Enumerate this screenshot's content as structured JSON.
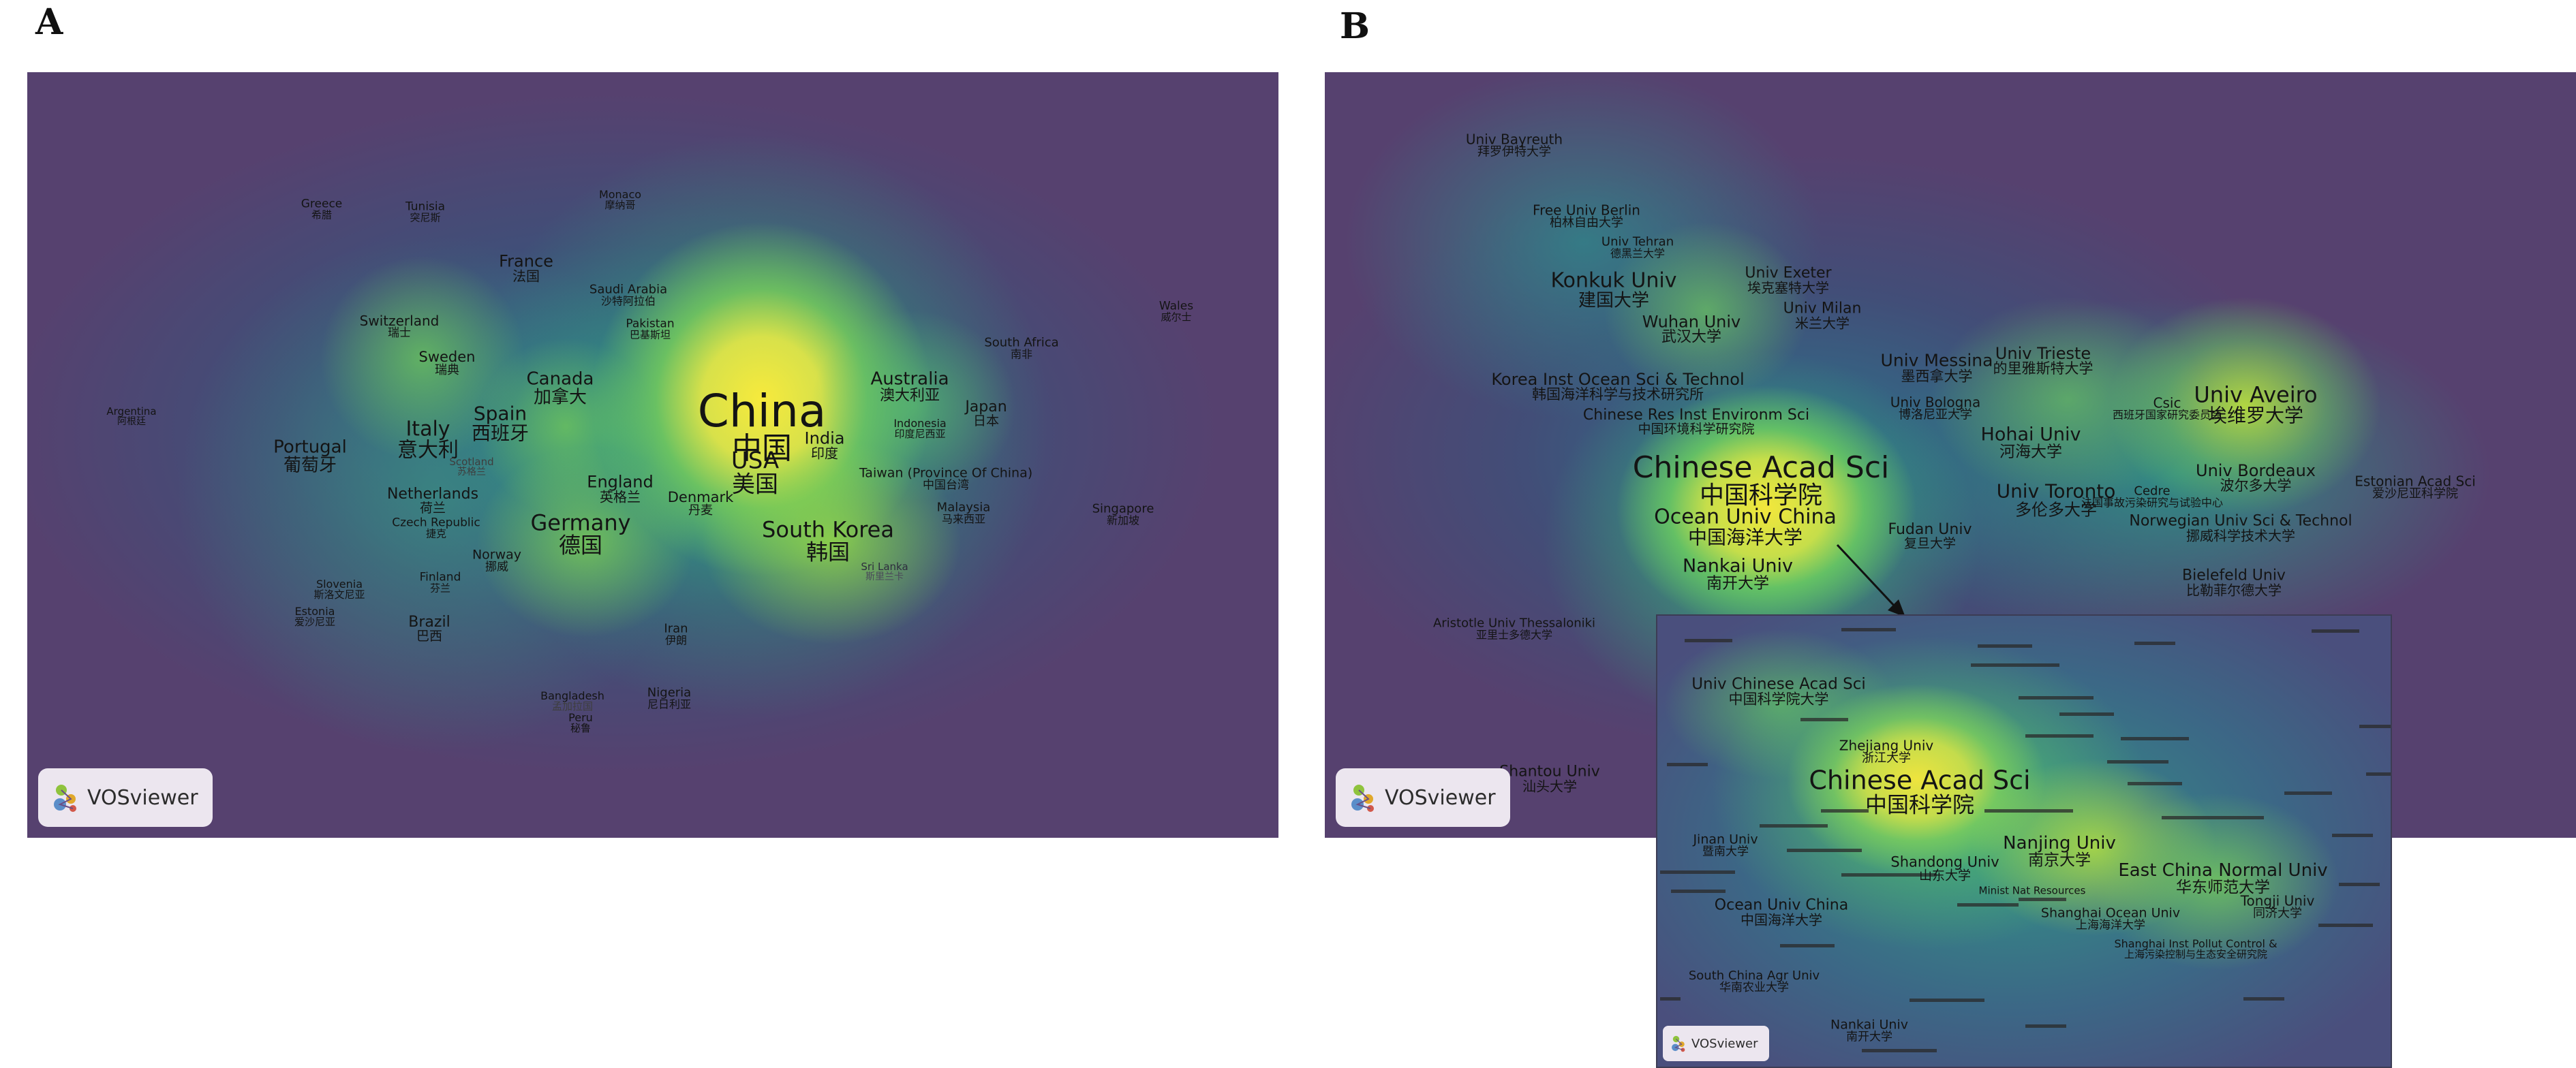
{
  "panels": [
    {
      "letter": "A"
    },
    {
      "letter": "B"
    }
  ],
  "logo_text": "VOSviewer",
  "mapA": {
    "labels": [
      {
        "en": "China",
        "zh": "中国"
      },
      {
        "en": "USA",
        "zh": "美国"
      },
      {
        "en": "India",
        "zh": "印度"
      },
      {
        "en": "South Korea",
        "zh": "韩国"
      },
      {
        "en": "Germany",
        "zh": "德国"
      },
      {
        "en": "England",
        "zh": "英格兰"
      },
      {
        "en": "Italy",
        "zh": "意大利"
      },
      {
        "en": "Spain",
        "zh": "西班牙"
      },
      {
        "en": "Canada",
        "zh": "加拿大"
      },
      {
        "en": "France",
        "zh": "法国"
      },
      {
        "en": "Portugal",
        "zh": "葡萄牙"
      },
      {
        "en": "Australia",
        "zh": "澳大利亚"
      },
      {
        "en": "Japan",
        "zh": "日本"
      },
      {
        "en": "Netherlands",
        "zh": "荷兰"
      },
      {
        "en": "Sweden",
        "zh": "瑞典"
      },
      {
        "en": "Switzerland",
        "zh": "瑞士"
      },
      {
        "en": "Denmark",
        "zh": "丹麦"
      },
      {
        "en": "Brazil",
        "zh": "巴西"
      },
      {
        "en": "Norway",
        "zh": "挪威"
      },
      {
        "en": "Finland",
        "zh": "芬兰"
      },
      {
        "en": "Czech Republic",
        "zh": "捷克"
      },
      {
        "en": "Scotland",
        "zh": "苏格兰"
      },
      {
        "en": "Indonesia",
        "zh": "印度尼西亚"
      },
      {
        "en": "Malaysia",
        "zh": "马来西亚"
      },
      {
        "en": "Taiwan (Province Of China)",
        "zh": "中国台湾"
      },
      {
        "en": "South Africa",
        "zh": "南非"
      },
      {
        "en": "Singapore",
        "zh": "新加坡"
      },
      {
        "en": "Wales",
        "zh": "威尔士"
      },
      {
        "en": "Argentina",
        "zh": "阿根廷"
      },
      {
        "en": "Greece",
        "zh": "希腊"
      },
      {
        "en": "Tunisia",
        "zh": "突尼斯"
      },
      {
        "en": "Monaco",
        "zh": "摩纳哥"
      },
      {
        "en": "Saudi Arabia",
        "zh": "沙特阿拉伯"
      },
      {
        "en": "Pakistan",
        "zh": "巴基斯坦"
      },
      {
        "en": "Slovenia",
        "zh": "斯洛文尼亚"
      },
      {
        "en": "Estonia",
        "zh": "爱沙尼亚"
      },
      {
        "en": "Iran",
        "zh": "伊朗"
      },
      {
        "en": "Bangladesh",
        "zh": "孟加拉国"
      },
      {
        "en": "Peru",
        "zh": "秘鲁"
      },
      {
        "en": "Nigeria",
        "zh": "尼日利亚"
      },
      {
        "en": "Sri Lanka",
        "zh": "斯里兰卡"
      }
    ]
  },
  "mapB": {
    "labels": [
      {
        "en": "Chinese Acad Sci",
        "zh": "中国科学院"
      },
      {
        "en": "Ocean Univ China",
        "zh": "中国海洋大学"
      },
      {
        "en": "Nankai Univ",
        "zh": "南开大学"
      },
      {
        "en": "Fudan Univ",
        "zh": "复旦大学"
      },
      {
        "en": "Univ Toronto",
        "zh": "多伦多大学"
      },
      {
        "en": "Univ Aveiro",
        "zh": "埃维罗大学"
      },
      {
        "en": "Univ Bordeaux",
        "zh": "波尔多大学"
      },
      {
        "en": "Estonian Acad Sci",
        "zh": "爱沙尼亚科学院"
      },
      {
        "en": "Norwegian Univ Sci & Technol",
        "zh": "挪威科学技术大学"
      },
      {
        "en": "Bielefeld Univ",
        "zh": "比勒菲尔德大学"
      },
      {
        "en": "Cedre",
        "zh": "法国事故污染研究与试验中心"
      },
      {
        "en": "Csic",
        "zh": "西班牙国家研究委员会"
      },
      {
        "en": "Hohai Univ",
        "zh": "河海大学"
      },
      {
        "en": "Univ Bologna",
        "zh": "博洛尼亚大学"
      },
      {
        "en": "Univ Messina",
        "zh": "墨西拿大学"
      },
      {
        "en": "Univ Trieste",
        "zh": "的里雅斯特大学"
      },
      {
        "en": "Korea Inst Ocean Sci & Technol",
        "zh": "韩国海洋科学与技术研究所"
      },
      {
        "en": "Chinese Res Inst Environm Sci",
        "zh": "中国环境科学研究院"
      },
      {
        "en": "Konkuk Univ",
        "zh": "建国大学"
      },
      {
        "en": "Wuhan Univ",
        "zh": "武汉大学"
      },
      {
        "en": "Univ Exeter",
        "zh": "埃克塞特大学"
      },
      {
        "en": "Univ Milan",
        "zh": "米兰大学"
      },
      {
        "en": "Free Univ Berlin",
        "zh": "柏林自由大学"
      },
      {
        "en": "Univ Tehran",
        "zh": "德黑兰大学"
      },
      {
        "en": "Univ Bayreuth",
        "zh": "拜罗伊特大学"
      },
      {
        "en": "Aristotle Univ Thessaloniki",
        "zh": "亚里士多德大学"
      },
      {
        "en": "Shantou Univ",
        "zh": "汕头大学"
      }
    ]
  },
  "inset": {
    "labels": [
      {
        "en": "Chinese Acad Sci",
        "zh": "中国科学院"
      },
      {
        "en": "Univ Chinese Acad Sci",
        "zh": "中国科学院大学"
      },
      {
        "en": "Nanjing Univ",
        "zh": "南京大学"
      },
      {
        "en": "East China Normal Univ",
        "zh": "华东师范大学"
      },
      {
        "en": "Tongji Univ",
        "zh": "同济大学"
      },
      {
        "en": "Shandong Univ",
        "zh": "山东大学"
      },
      {
        "en": "Ocean Univ China",
        "zh": "中国海洋大学"
      },
      {
        "en": "Zhejiang Univ",
        "zh": "浙江大学"
      },
      {
        "en": "Jinan Univ",
        "zh": "暨南大学"
      },
      {
        "en": "Shanghai Ocean Univ",
        "zh": "上海海洋大学"
      },
      {
        "en": "Shanghai Inst Pollut Control &",
        "zh": "上海污染控制与生态安全研究院"
      },
      {
        "en": "South China Agr Univ",
        "zh": "华南农业大学"
      },
      {
        "en": "Nankai Univ",
        "zh": "南开大学"
      },
      {
        "en": "Minist Nat Resources",
        "zh": ""
      }
    ]
  }
}
